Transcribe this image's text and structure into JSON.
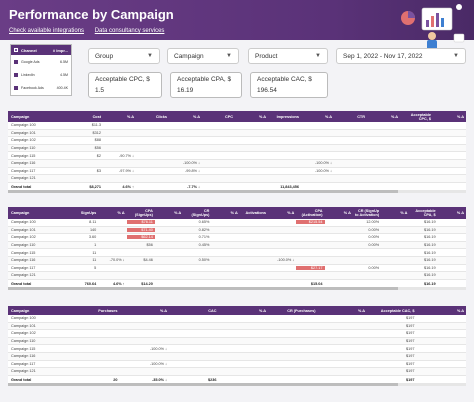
{
  "header": {
    "title": "Performance by Campaign",
    "links": [
      "Check available integrations",
      "Data consultancy services"
    ]
  },
  "channel_filter": {
    "header": "Channel",
    "header_value": "# Impr...",
    "items": [
      {
        "label": "Google Ads",
        "value": "6.5M"
      },
      {
        "label": "LinkedIn",
        "value": "4.5M"
      },
      {
        "label": "Facebook Ads",
        "value": "400.4K"
      }
    ]
  },
  "filters": {
    "group": "Group",
    "campaign": "Campaign",
    "product": "Product",
    "date_range": "Sep 1, 2022 - Nov 17, 2022"
  },
  "inputs": {
    "cpc": {
      "label": "Acceptable CPC, $",
      "value": "1.5"
    },
    "cpa": {
      "label": "Acceptable CPA, $",
      "value": "16.19"
    },
    "cac": {
      "label": "Acceptable CAC, $",
      "value": "196.54"
    }
  },
  "table1": {
    "headers": [
      "Campaign",
      "Cost",
      "% Δ",
      "Clicks",
      "% Δ",
      "CPC",
      "% Δ",
      "Impressions",
      "% Δ",
      "CTR",
      "% Δ",
      "Acceptable CPC, $",
      "% Δ"
    ],
    "rows": [
      [
        "Campaign 100",
        "$11.3",
        "",
        "",
        "",
        "",
        "",
        "",
        "",
        "",
        "",
        "",
        ""
      ],
      [
        "Campaign 101",
        "$312",
        "",
        "",
        "",
        "",
        "",
        "",
        "",
        "",
        "",
        "",
        ""
      ],
      [
        "Campaign 102",
        "$88",
        "",
        "",
        "",
        "",
        "",
        "",
        "",
        "",
        "",
        "",
        ""
      ],
      [
        "Campaign 110",
        "$56",
        "",
        "",
        "",
        "",
        "",
        "",
        "",
        "",
        "",
        "",
        ""
      ],
      [
        "Campaign 115",
        "$2",
        "-90.7% ↓",
        "",
        "",
        "",
        "",
        "",
        "",
        "",
        "",
        "",
        ""
      ],
      [
        "Campaign 116",
        "",
        "",
        "",
        "-100.0% ↓",
        "",
        "",
        "",
        "-100.0% ↓",
        "",
        "",
        "",
        ""
      ],
      [
        "Campaign 117",
        "$3",
        "-97.9% ↓",
        "",
        "-99.8% ↓",
        "",
        "",
        "",
        "-100.0% ↓",
        "",
        "",
        "",
        ""
      ],
      [
        "Campaign 121",
        "",
        "",
        "",
        "",
        "",
        "",
        "",
        "",
        "",
        "",
        "",
        ""
      ]
    ],
    "total": [
      "Grand total",
      "$8,271",
      "4.6% ↑",
      "",
      "-7.7% ↓",
      "",
      "",
      "11,843,456",
      "",
      "",
      "",
      "",
      ""
    ]
  },
  "table2": {
    "headers": [
      "Campaign",
      "SignUps",
      "% Δ",
      "CPA (SignUps)",
      "% Δ",
      "CR (SignUps)",
      "% Δ",
      "Activations",
      "% Δ",
      "CPA (Activation)",
      "% Δ",
      "CR (SignUp to Activation)",
      "% Δ",
      "Acceptable CPA, $",
      "% Δ"
    ],
    "rows": [
      [
        "Campaign 100",
        "8.11",
        "",
        "$76.11",
        "",
        "0.65%",
        "",
        "",
        "",
        "$215.54",
        "",
        "12.00%",
        "",
        "$16.19",
        ""
      ],
      [
        "Campaign 101",
        "140",
        "",
        "$71.40",
        "",
        "0.82%",
        "",
        "",
        "",
        "",
        "",
        "0.00%",
        "",
        "$16.19",
        ""
      ],
      [
        "Campaign 102",
        "3.60",
        "",
        "$62.14",
        "",
        "0.71%",
        "",
        "",
        "",
        "",
        "",
        "0.00%",
        "",
        "$16.19",
        ""
      ],
      [
        "Campaign 110",
        "1",
        "",
        "$56",
        "",
        "0.45%",
        "",
        "",
        "",
        "",
        "",
        "0.00%",
        "",
        "$16.19",
        ""
      ],
      [
        "Campaign 115",
        "11",
        "",
        "",
        "",
        "",
        "",
        "",
        "",
        "",
        "",
        "",
        "",
        "$16.19",
        ""
      ],
      [
        "Campaign 116",
        "11",
        "-70.0% ↓",
        "$4.46",
        "",
        "0.50%",
        "",
        "",
        "-100.0% ↓",
        "",
        "",
        "",
        "",
        "$16.19",
        ""
      ],
      [
        "Campaign 117",
        "5",
        "",
        "",
        "",
        "",
        "",
        "",
        "",
        "$27.17",
        "",
        "0.00%",
        "",
        "$16.19",
        ""
      ],
      [
        "Campaign 121",
        "",
        "",
        "",
        "",
        "",
        "",
        "",
        "",
        "",
        "",
        "",
        "",
        "$16.19",
        ""
      ]
    ],
    "total": [
      "Grand total",
      "760.64",
      "4.6% ↑",
      "$14.20",
      "",
      "",
      "",
      "",
      "",
      "$15.04",
      "",
      "",
      "",
      "$16.19",
      ""
    ]
  },
  "table3": {
    "headers": [
      "Campaign",
      "Purchases",
      "% Δ",
      "CAC",
      "% Δ",
      "CR (Purchases)",
      "% Δ",
      "Acceptable CAC, $",
      "% Δ"
    ],
    "rows": [
      [
        "Campaign 100",
        "",
        "",
        "",
        "",
        "",
        "",
        "$197",
        ""
      ],
      [
        "Campaign 101",
        "",
        "",
        "",
        "",
        "",
        "",
        "$197",
        ""
      ],
      [
        "Campaign 102",
        "",
        "",
        "",
        "",
        "",
        "",
        "$197",
        ""
      ],
      [
        "Campaign 110",
        "",
        "",
        "",
        "",
        "",
        "",
        "$197",
        ""
      ],
      [
        "Campaign 115",
        "",
        "-100.0% ↓",
        "",
        "",
        "",
        "",
        "$197",
        ""
      ],
      [
        "Campaign 116",
        "",
        "",
        "",
        "",
        "",
        "",
        "$197",
        ""
      ],
      [
        "Campaign 117",
        "",
        "-100.0% ↓",
        "",
        "",
        "",
        "",
        "$197",
        ""
      ],
      [
        "Campaign 121",
        "",
        "",
        "",
        "",
        "",
        "",
        "$197",
        ""
      ]
    ],
    "total": [
      "Grand total",
      "20",
      "-35.0% ↓",
      "$236",
      "",
      "",
      "",
      "$197",
      ""
    ]
  },
  "colors": {
    "header": "#5a3278",
    "highlight": "#e07070",
    "background": "#f3f3f6"
  }
}
